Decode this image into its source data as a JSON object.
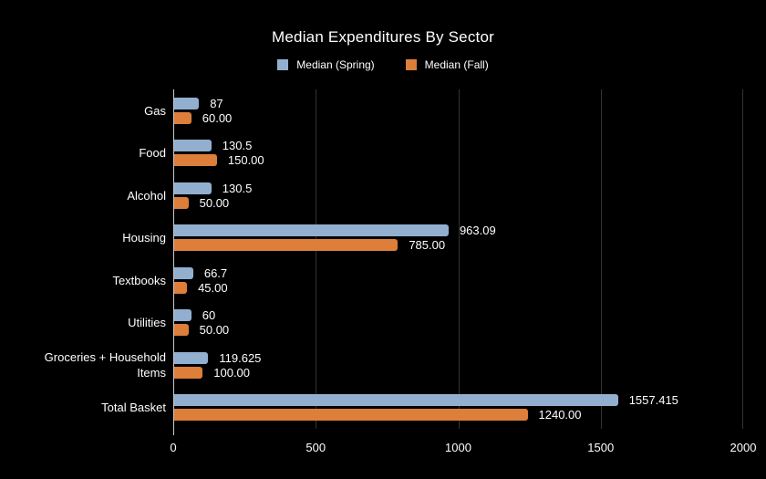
{
  "title": "Median Expenditures By Sector",
  "colors": {
    "background": "#000000",
    "text": "#ffffff",
    "gridline": "#333333",
    "axis_line": "#cccccc",
    "spring": "#92afd0",
    "fall": "#dd7e3b"
  },
  "chart_data": {
    "type": "bar",
    "orientation": "horizontal",
    "title": "Median Expenditures By Sector",
    "categories": [
      "Gas",
      "Food",
      "Alcohol",
      "Housing",
      "Textbooks",
      "Utilities",
      "Groceries + Household Items",
      "Total Basket"
    ],
    "series": [
      {
        "name": "Median (Spring)",
        "key": "spring",
        "color": "#92afd0",
        "values": [
          87,
          130.5,
          130.5,
          963.09,
          66.7,
          60,
          119.625,
          1557.415
        ],
        "labels": [
          "87",
          "130.5",
          "130.5",
          "963.09",
          "66.7",
          "60",
          "119.625",
          "1557.415"
        ]
      },
      {
        "name": "Median (Fall)",
        "key": "fall",
        "color": "#dd7e3b",
        "values": [
          60,
          150,
          50,
          785,
          45,
          50,
          100,
          1240
        ],
        "labels": [
          "60.00",
          "150.00",
          "50.00",
          "785.00",
          "45.00",
          "50.00",
          "100.00",
          "1240.00"
        ]
      }
    ],
    "x_axis": {
      "min": 0,
      "max": 2000,
      "ticks": [
        0,
        500,
        1000,
        1500,
        2000
      ],
      "tick_labels": [
        "0",
        "500",
        "1000",
        "1500",
        "2000"
      ]
    },
    "grid": true,
    "legend_position": "top"
  }
}
